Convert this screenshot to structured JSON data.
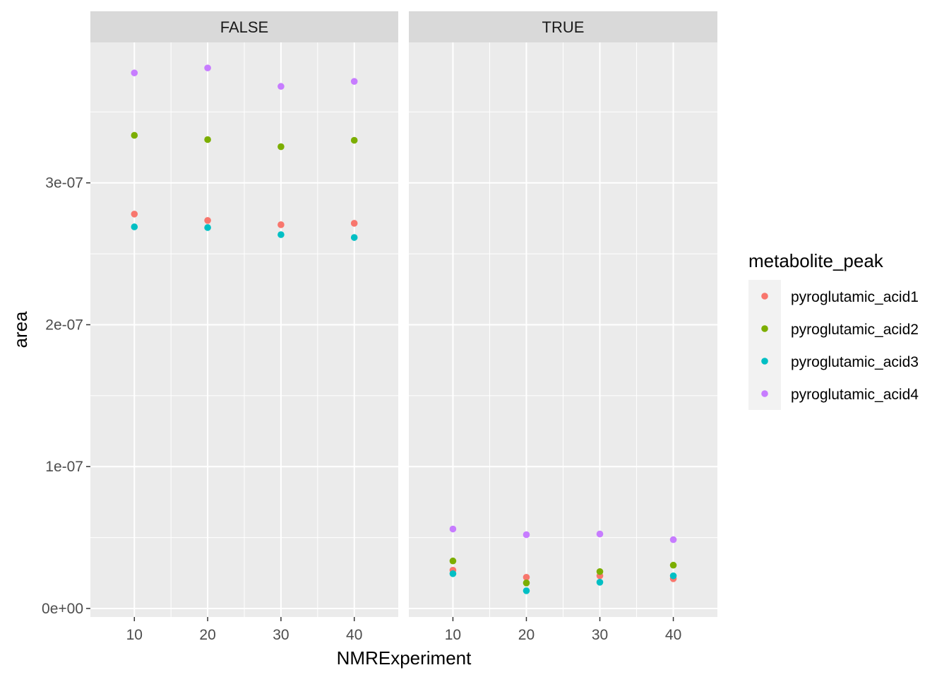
{
  "chart_data": {
    "type": "scatter",
    "xlabel": "NMRExperiment",
    "ylabel": "area",
    "x_ticks": [
      10,
      20,
      30,
      40
    ],
    "y_ticks": [
      0,
      1e-07,
      2e-07,
      3e-07
    ],
    "y_tick_labels": [
      "0e+00",
      "1e-07",
      "2e-07",
      "3e-07"
    ],
    "xlim": [
      4,
      46
    ],
    "ylim": [
      -6e-09,
      3.99e-07
    ],
    "panel_background": "#ebebeb",
    "strip_background": "#d9d9d9",
    "grid": true,
    "legend": {
      "title": "metabolite_peak",
      "placement": "right"
    },
    "panels": [
      {
        "label": "FALSE",
        "series": [
          {
            "name": "pyroglutamic_acid1",
            "color": "#F8766D",
            "x": [
              10,
              20,
              30,
              40
            ],
            "y": [
              2.78e-07,
              2.735e-07,
              2.705e-07,
              2.715e-07
            ]
          },
          {
            "name": "pyroglutamic_acid2",
            "color": "#7CAE00",
            "x": [
              10,
              20,
              30,
              40
            ],
            "y": [
              3.335e-07,
              3.305e-07,
              3.255e-07,
              3.3e-07
            ]
          },
          {
            "name": "pyroglutamic_acid3",
            "color": "#00BFC4",
            "x": [
              10,
              20,
              30,
              40
            ],
            "y": [
              2.69e-07,
              2.685e-07,
              2.635e-07,
              2.615e-07
            ]
          },
          {
            "name": "pyroglutamic_acid4",
            "color": "#C77CFF",
            "x": [
              10,
              20,
              30,
              40
            ],
            "y": [
              3.775e-07,
              3.81e-07,
              3.68e-07,
              3.715e-07
            ]
          }
        ]
      },
      {
        "label": "TRUE",
        "series": [
          {
            "name": "pyroglutamic_acid1",
            "color": "#F8766D",
            "x": [
              10,
              20,
              30,
              40
            ],
            "y": [
              2.7e-08,
              2.2e-08,
              2.3e-08,
              2.1e-08
            ]
          },
          {
            "name": "pyroglutamic_acid2",
            "color": "#7CAE00",
            "x": [
              10,
              20,
              30,
              40
            ],
            "y": [
              3.35e-08,
              1.8e-08,
              2.6e-08,
              3.05e-08
            ]
          },
          {
            "name": "pyroglutamic_acid3",
            "color": "#00BFC4",
            "x": [
              10,
              20,
              30,
              40
            ],
            "y": [
              2.45e-08,
              1.25e-08,
              1.85e-08,
              2.3e-08
            ]
          },
          {
            "name": "pyroglutamic_acid4",
            "color": "#C77CFF",
            "x": [
              10,
              20,
              30,
              40
            ],
            "y": [
              5.6e-08,
              5.2e-08,
              5.25e-08,
              4.85e-08
            ]
          }
        ]
      }
    ]
  }
}
